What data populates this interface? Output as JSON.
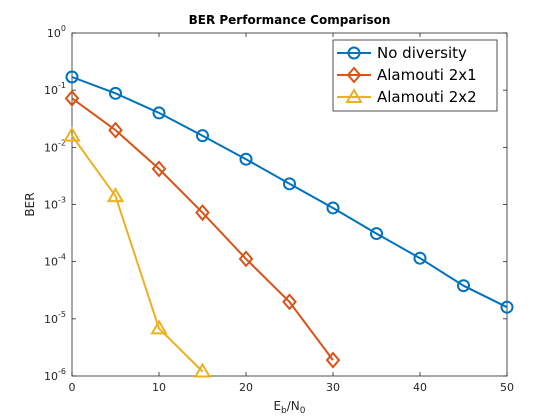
{
  "chart_data": {
    "type": "line",
    "title": "BER Performance Comparison",
    "xlabel": {
      "base": "E",
      "sub1": "b",
      "mid": "/N",
      "sub2": "0"
    },
    "ylabel": "BER",
    "yscale": "log",
    "xlim": [
      0,
      50
    ],
    "ylim": [
      1e-06,
      1
    ],
    "x_ticks": [
      0,
      10,
      20,
      30,
      40,
      50
    ],
    "y_tick_exponents": [
      0,
      -1,
      -2,
      -3,
      -4,
      -5,
      -6
    ],
    "y_tick_base": "10",
    "grid": false,
    "legend_position": "top-right",
    "series": [
      {
        "name": "No diversity",
        "color": "#0072BD",
        "marker": "circle",
        "x": [
          0,
          5,
          10,
          15,
          20,
          25,
          30,
          35,
          40,
          45,
          50
        ],
        "values": [
          0.17,
          0.088,
          0.04,
          0.016,
          0.0062,
          0.0023,
          0.00087,
          0.00031,
          0.000115,
          3.8e-05,
          1.6e-05
        ]
      },
      {
        "name": "Alamouti 2x1",
        "color": "#D95319",
        "marker": "diamond",
        "x": [
          0,
          5,
          10,
          15,
          20,
          25,
          30
        ],
        "values": [
          0.072,
          0.02,
          0.0042,
          0.00072,
          0.000112,
          1.98e-05,
          1.9e-06
        ]
      },
      {
        "name": "Alamouti 2x2",
        "color": "#EDB120",
        "marker": "triangle",
        "x": [
          0,
          5,
          10,
          15
        ],
        "values": [
          0.016,
          0.0014,
          6.8e-06,
          1.2e-06
        ]
      }
    ]
  }
}
